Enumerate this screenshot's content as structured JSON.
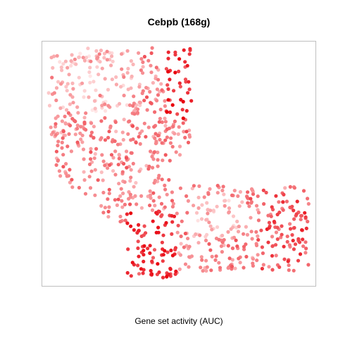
{
  "chart_data": {
    "type": "scatter",
    "title": "Cebpb (168g)",
    "xlabel": "Gene set activity (AUC)",
    "ylabel": "",
    "xlim": [
      0,
      1
    ],
    "ylim": [
      0,
      1
    ],
    "axes_visible": false,
    "grid": false,
    "legend": "none",
    "color_scale": {
      "low": "#ffe6e6",
      "high": "#e8000b"
    },
    "point_count": 900,
    "regions": [
      {
        "name": "upper-left lobe",
        "x_range": [
          0.03,
          0.56
        ],
        "y_range": [
          0.32,
          0.94
        ],
        "activity": "low-medium"
      },
      {
        "name": "upper-right ridge",
        "x_range": [
          0.45,
          0.55
        ],
        "y_range": [
          0.7,
          0.88
        ],
        "activity": "high"
      },
      {
        "name": "lower-left cluster",
        "x_range": [
          0.33,
          0.55
        ],
        "y_range": [
          0.05,
          0.3
        ],
        "activity": "high"
      },
      {
        "name": "right arm",
        "x_range": [
          0.55,
          0.98
        ],
        "y_range": [
          0.1,
          0.4
        ],
        "activity": "medium"
      }
    ]
  },
  "colors": {
    "background": "#ffffff",
    "frame": "#bfbfbf",
    "text": "#000000"
  }
}
